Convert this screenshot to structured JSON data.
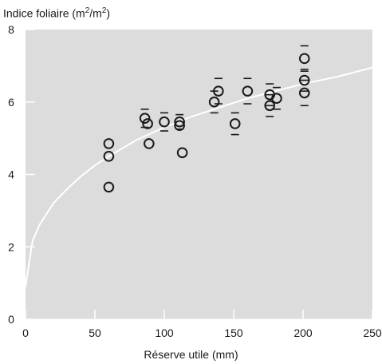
{
  "chart_data": {
    "type": "scatter",
    "title": "",
    "ylabel": {
      "main": "Indice foliaire (m",
      "exp1": "2",
      "mid": "/m",
      "exp2": "2",
      "end": ")"
    },
    "xlabel": "Réserve utile (mm)",
    "xlim": [
      0,
      250
    ],
    "ylim": [
      0,
      8
    ],
    "xticks": [
      0,
      50,
      100,
      150,
      200,
      250
    ],
    "yticks": [
      0,
      2,
      4,
      6,
      8
    ],
    "grid": false,
    "colors": {
      "plot_background": "#dcdcdc",
      "marker": "#1a1a1a",
      "curve": "#ffffff",
      "error_bar": "#1a1a1a"
    },
    "points": [
      {
        "x": 60,
        "y": 3.65
      },
      {
        "x": 60,
        "y": 4.5
      },
      {
        "x": 60,
        "y": 4.85
      },
      {
        "x": 86,
        "y": 5.55,
        "err": 0.25
      },
      {
        "x": 88,
        "y": 5.4
      },
      {
        "x": 89,
        "y": 4.85
      },
      {
        "x": 100,
        "y": 5.45,
        "err": 0.25
      },
      {
        "x": 111,
        "y": 5.45,
        "err": 0.2
      },
      {
        "x": 111,
        "y": 5.35
      },
      {
        "x": 113,
        "y": 4.6
      },
      {
        "x": 136,
        "y": 6.0,
        "err": 0.3
      },
      {
        "x": 139,
        "y": 6.3,
        "err": 0.35
      },
      {
        "x": 151,
        "y": 5.4,
        "err": 0.3
      },
      {
        "x": 160,
        "y": 6.3,
        "err": 0.35
      },
      {
        "x": 176,
        "y": 6.2,
        "err": 0.3
      },
      {
        "x": 176,
        "y": 5.9,
        "err": 0.3
      },
      {
        "x": 181,
        "y": 6.1,
        "err": 0.3
      },
      {
        "x": 201,
        "y": 7.2,
        "err": 0.35
      },
      {
        "x": 201,
        "y": 6.6,
        "err": 0.3
      },
      {
        "x": 201,
        "y": 6.25,
        "err": 0.35
      }
    ],
    "fit_curve": {
      "type": "line",
      "x": [
        0,
        5,
        10,
        20,
        30,
        40,
        50,
        60,
        80,
        100,
        120,
        140,
        160,
        180,
        200,
        225,
        250
      ],
      "y": [
        0.9,
        2.15,
        2.6,
        3.2,
        3.6,
        3.95,
        4.25,
        4.5,
        4.95,
        5.3,
        5.6,
        5.85,
        6.1,
        6.3,
        6.5,
        6.7,
        6.95
      ]
    }
  }
}
